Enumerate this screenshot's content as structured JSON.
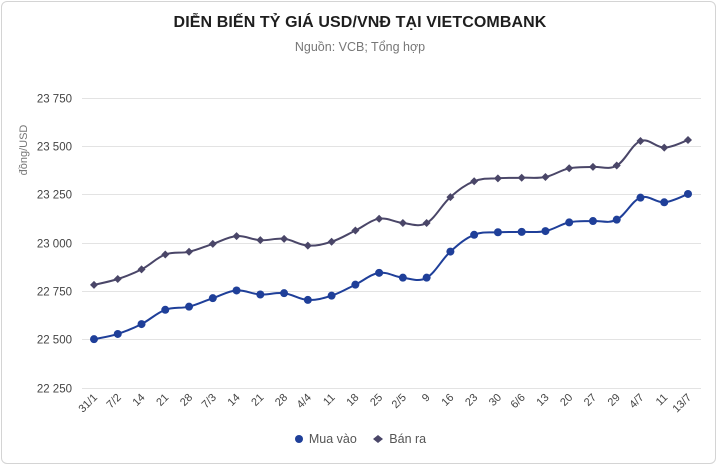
{
  "header": {
    "title": "DIỄN BIẾN TỶ GIÁ USD/VNĐ TẠI VIETCOMBANK",
    "subtitle": "Nguồn: VCB; Tổng hợp"
  },
  "legend": {
    "items": [
      {
        "label": "Mua vào",
        "marker": "circle",
        "color": "#1f3f99"
      },
      {
        "label": "Bán ra",
        "marker": "diamond",
        "color": "#4a4668"
      }
    ]
  },
  "chart_data": {
    "type": "line",
    "title": "DIỄN BIẾN TỶ GIÁ USD/VNĐ TẠI VIETCOMBANK",
    "subtitle": "Nguồn: VCB; Tổng hợp",
    "xlabel": "",
    "ylabel": "đồng/USD",
    "ylim": [
      22250,
      23750
    ],
    "yticks": [
      22250,
      22500,
      22750,
      23000,
      23250,
      23500,
      23750
    ],
    "ytick_labels": [
      "22 250",
      "22 500",
      "22 750",
      "23 000",
      "23 250",
      "23 500",
      "23 750"
    ],
    "grid": true,
    "legend_position": "bottom",
    "categories": [
      "31/1",
      "7/2",
      "14",
      "21",
      "28",
      "7/3",
      "14",
      "21",
      "28",
      "4/4",
      "11",
      "18",
      "25",
      "2/5",
      "9",
      "16",
      "23",
      "30",
      "6/6",
      "13",
      "20",
      "27",
      "29",
      "4/7",
      "11",
      "13/7"
    ],
    "series": [
      {
        "name": "Mua vào",
        "color": "#1f3f99",
        "marker": "circle",
        "values": [
          22500,
          22527,
          22578,
          22652,
          22668,
          22712,
          22752,
          22731,
          22738,
          22703,
          22725,
          22782,
          22843,
          22818,
          22818,
          22953,
          23040,
          23053,
          23055,
          23059,
          23104,
          23111,
          23118,
          23232,
          23208,
          23251
        ]
      },
      {
        "name": "Bán ra",
        "color": "#4a4668",
        "marker": "diamond",
        "values": [
          22781,
          22811,
          22861,
          22938,
          22952,
          22993,
          23033,
          23012,
          23019,
          22984,
          23004,
          23062,
          23123,
          23101,
          23101,
          23235,
          23317,
          23332,
          23335,
          23339,
          23384,
          23391,
          23398,
          23525,
          23491,
          23530
        ]
      }
    ]
  }
}
